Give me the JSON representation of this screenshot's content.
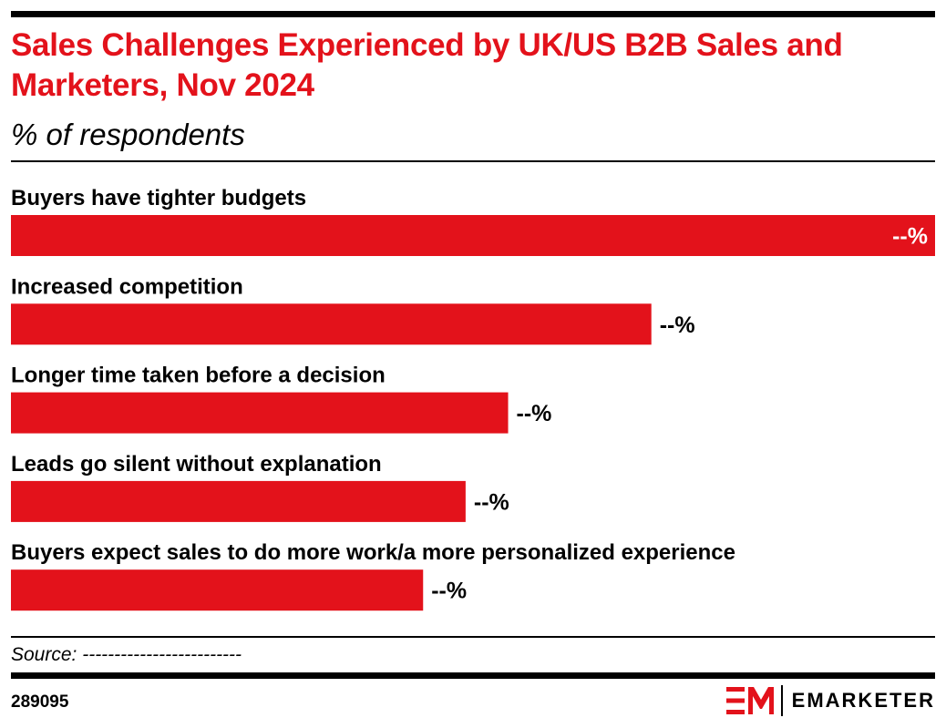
{
  "header": {
    "title": "Sales Challenges Experienced by UK/US B2B Sales and Marketers, Nov 2024",
    "subtitle": "% of respondents"
  },
  "chart_data": {
    "type": "bar",
    "orientation": "horizontal",
    "title": "Sales Challenges Experienced by UK/US B2B Sales and Marketers, Nov 2024",
    "subtitle": "% of respondents",
    "categories": [
      "Buyers have tighter budgets",
      "Increased competition",
      "Longer time taken before a decision",
      "Leads go silent without explanation",
      "Buyers expect sales to do more work/a more personalized experience"
    ],
    "values": [
      100,
      69.3,
      53.8,
      49.2,
      44.6
    ],
    "value_labels": [
      "--%",
      "--%",
      "--%",
      "--%",
      "--%"
    ],
    "value_scale": "relative to largest bar = 100 (exact values hidden)",
    "xlim": [
      0,
      100
    ],
    "grid": false,
    "legend": "none",
    "bar_color": "#e3121b"
  },
  "footer": {
    "source": "Source: -------------------------",
    "chart_id": "289095",
    "brand": "EMARKETER"
  },
  "colors": {
    "accent": "#e3121b",
    "text": "#000000",
    "background": "#ffffff"
  }
}
